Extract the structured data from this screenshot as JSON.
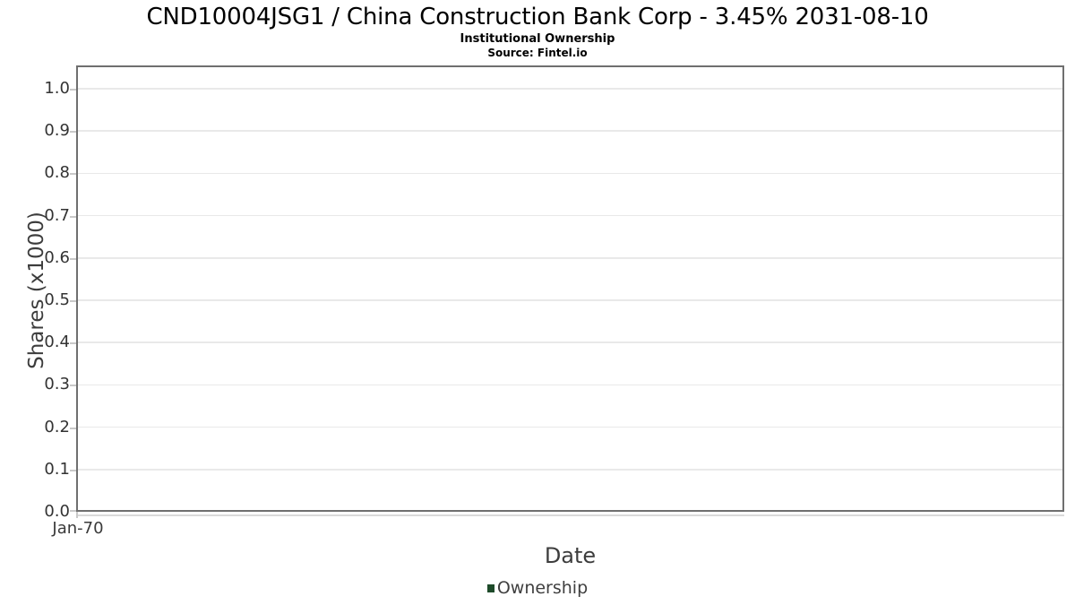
{
  "chart": {
    "title": "CND10004JSG1 / China Construction Bank Corp - 3.45% 2031-08-10",
    "subtitle": "Institutional Ownership",
    "source": "Source: Fintel.io",
    "x_axis_title": "Date",
    "y_axis_title": "Shares (x1000)",
    "legend": [
      {
        "label": "Ownership",
        "color": "#1e4b2a"
      }
    ],
    "colors": {
      "plot_border": "#6f6f6f",
      "gridline": "#e9e9e9",
      "tick_mark": "#c9c9c9",
      "axis_subline": "#d9d9d9",
      "tick_text": "#333333",
      "axis_title_text": "#3d3d3d",
      "legend_marker": "#1e4b2a"
    }
  },
  "chart_data": {
    "type": "line",
    "title": "CND10004JSG1 / China Construction Bank Corp - 3.45% 2031-08-10",
    "subtitle": "Institutional Ownership",
    "source": "Source: Fintel.io",
    "xlabel": "Date",
    "ylabel": "Shares (x1000)",
    "series": [
      {
        "name": "Ownership",
        "color": "#1e4b2a",
        "x": [],
        "values": []
      }
    ],
    "x_tick_labels": [
      "Jan-70"
    ],
    "y_tick_values": [
      0.0,
      0.1,
      0.2,
      0.3,
      0.4,
      0.5,
      0.6,
      0.7,
      0.8,
      0.9,
      1.0
    ],
    "y_tick_labels": [
      "0.0",
      "0.1",
      "0.2",
      "0.3",
      "0.4",
      "0.5",
      "0.6",
      "0.7",
      "0.8",
      "0.9",
      "1.0"
    ],
    "ylim": [
      0,
      1.055
    ],
    "grid": true,
    "legend_position": "bottom-center"
  }
}
